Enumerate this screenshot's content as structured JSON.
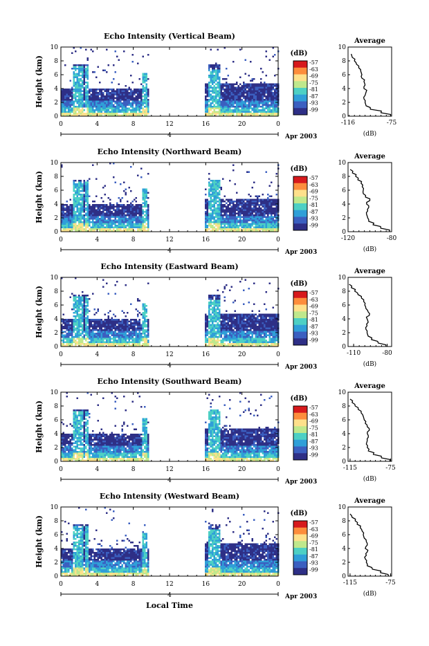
{
  "figure": {
    "xlabel": "Local Time",
    "date_label": "Apr 2003",
    "day_marker": "4",
    "colorbar_unit": "(dB)",
    "colorbar_ticks": [
      "-57",
      "-63",
      "-69",
      "-75",
      "-81",
      "-87",
      "-93",
      "-99"
    ],
    "colorbar_colors": [
      "#d7191c",
      "#fd8d3c",
      "#fee08b",
      "#bfe88c",
      "#4dd0c4",
      "#2f9fd8",
      "#3b5fc0",
      "#2e2f86"
    ],
    "profile_title": "Average",
    "profile_unit": "(dB)"
  },
  "chart_data": [
    {
      "type": "heatmap",
      "title": "Echo Intensity (Vertical Beam)",
      "ylabel": "Height (km)",
      "xlim": [
        0,
        24
      ],
      "ylim": [
        0,
        10
      ],
      "x_ticks": [
        "0",
        "4",
        "8",
        "12",
        "16",
        "20",
        "0"
      ],
      "y_ticks": [
        "0",
        "2",
        "4",
        "6",
        "8",
        "10"
      ],
      "data_intervals_hours": [
        [
          0,
          9.6
        ],
        [
          15.9,
          24
        ]
      ],
      "profile": {
        "type": "line",
        "xlim": [
          -116,
          -75
        ],
        "x_ticks": [
          "-116",
          "-75"
        ],
        "y_ticks": [
          "0",
          "2",
          "4",
          "6",
          "8",
          "10"
        ],
        "height_km": [
          0,
          0.5,
          1,
          1.5,
          2,
          2.5,
          3,
          3.5,
          4,
          4.5,
          5,
          5.5,
          6,
          6.5,
          7,
          7.5,
          8,
          8.5,
          9
        ],
        "value_db": [
          -76,
          -85,
          -95,
          -99,
          -100,
          -101,
          -100,
          -99,
          -101,
          -100,
          -101,
          -103,
          -103,
          -104,
          -106,
          -108,
          -110,
          -112,
          -113
        ]
      }
    },
    {
      "type": "heatmap",
      "title": "Echo Intensity (Northward Beam)",
      "ylabel": "Height (km)",
      "xlim": [
        0,
        24
      ],
      "ylim": [
        0,
        10
      ],
      "x_ticks": [
        "0",
        "4",
        "8",
        "12",
        "16",
        "20",
        "0"
      ],
      "y_ticks": [
        "0",
        "2",
        "4",
        "6",
        "8",
        "10"
      ],
      "data_intervals_hours": [
        [
          0,
          9.6
        ],
        [
          15.9,
          24
        ]
      ],
      "profile": {
        "type": "line",
        "xlim": [
          -120,
          -80
        ],
        "x_ticks": [
          "-120",
          "-80"
        ],
        "y_ticks": [
          "0",
          "2",
          "4",
          "6",
          "8",
          "10"
        ],
        "height_km": [
          0,
          0.5,
          1,
          1.5,
          2,
          2.5,
          3,
          3.5,
          4,
          4.5,
          5,
          5.5,
          6,
          6.5,
          7,
          7.5,
          8,
          8.5,
          9
        ],
        "value_db": [
          -82,
          -90,
          -97,
          -101,
          -102,
          -103,
          -102,
          -101,
          -103,
          -100,
          -104,
          -106,
          -106,
          -107,
          -108,
          -111,
          -113,
          -116,
          -118
        ]
      }
    },
    {
      "type": "heatmap",
      "title": "Echo Intensity (Eastward Beam)",
      "ylabel": "Height (km)",
      "xlim": [
        0,
        24
      ],
      "ylim": [
        0,
        10
      ],
      "x_ticks": [
        "0",
        "4",
        "8",
        "12",
        "16",
        "20",
        "0"
      ],
      "y_ticks": [
        "0",
        "2",
        "4",
        "6",
        "8",
        "10"
      ],
      "data_intervals_hours": [
        [
          0,
          9.6
        ],
        [
          15.9,
          24
        ]
      ],
      "profile": {
        "type": "line",
        "xlim": [
          -115,
          -76
        ],
        "x_ticks": [
          "-110",
          "-80"
        ],
        "y_ticks": [
          "0",
          "2",
          "4",
          "6",
          "8",
          "10"
        ],
        "height_km": [
          0,
          0.5,
          1,
          1.5,
          2,
          2.5,
          3,
          3.5,
          4,
          4.5,
          5,
          5.5,
          6,
          6.5,
          7,
          7.5,
          8,
          8.5,
          9
        ],
        "value_db": [
          -81,
          -88,
          -94,
          -97,
          -98,
          -99,
          -98,
          -97,
          -98,
          -96,
          -97,
          -99,
          -100,
          -101,
          -103,
          -106,
          -109,
          -112,
          -114
        ]
      }
    },
    {
      "type": "heatmap",
      "title": "Echo Intensity (Southward Beam)",
      "ylabel": "Height (km)",
      "xlim": [
        0,
        24
      ],
      "ylim": [
        0,
        10
      ],
      "x_ticks": [
        "0",
        "4",
        "8",
        "12",
        "16",
        "20",
        "0"
      ],
      "y_ticks": [
        "0",
        "2",
        "4",
        "6",
        "8",
        "10"
      ],
      "data_intervals_hours": [
        [
          0,
          9.6
        ],
        [
          15.9,
          24
        ]
      ],
      "profile": {
        "type": "line",
        "xlim": [
          -117,
          -74
        ],
        "x_ticks": [
          "-115",
          "-75"
        ],
        "y_ticks": [
          "0",
          "2",
          "4",
          "6",
          "8",
          "10"
        ],
        "height_km": [
          0,
          0.5,
          1,
          1.5,
          2,
          2.5,
          3,
          3.5,
          4,
          4.5,
          5,
          5.5,
          6,
          6.5,
          7,
          7.5,
          8,
          8.5,
          9
        ],
        "value_db": [
          -76,
          -84,
          -92,
          -97,
          -98,
          -99,
          -98,
          -97,
          -98,
          -96,
          -98,
          -100,
          -101,
          -102,
          -104,
          -107,
          -110,
          -113,
          -115
        ]
      }
    },
    {
      "type": "heatmap",
      "title": "Echo Intensity (Westward Beam)",
      "ylabel": "Height (km)",
      "xlim": [
        0,
        24
      ],
      "ylim": [
        0,
        10
      ],
      "x_ticks": [
        "0",
        "4",
        "8",
        "12",
        "16",
        "20",
        "0"
      ],
      "y_ticks": [
        "0",
        "2",
        "4",
        "6",
        "8",
        "10"
      ],
      "data_intervals_hours": [
        [
          0,
          9.6
        ],
        [
          15.9,
          24
        ]
      ],
      "profile": {
        "type": "line",
        "xlim": [
          -117,
          -74
        ],
        "x_ticks": [
          "-115",
          "-75"
        ],
        "y_ticks": [
          "0",
          "2",
          "4",
          "6",
          "8",
          "10"
        ],
        "height_km": [
          0,
          0.5,
          1,
          1.5,
          2,
          2.5,
          3,
          3.5,
          4,
          4.5,
          5,
          5.5,
          6,
          6.5,
          7,
          7.5,
          8,
          8.5,
          9
        ],
        "value_db": [
          -77,
          -85,
          -93,
          -98,
          -99,
          -100,
          -99,
          -98,
          -100,
          -98,
          -99,
          -101,
          -102,
          -103,
          -105,
          -108,
          -110,
          -113,
          -115
        ]
      }
    }
  ]
}
